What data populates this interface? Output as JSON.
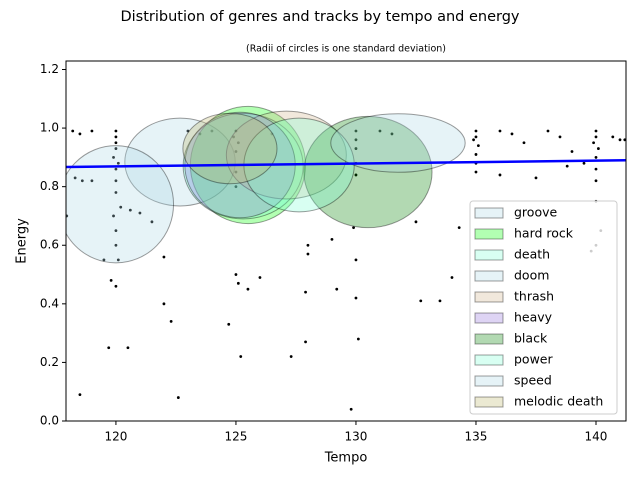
{
  "chart_data": {
    "type": "ellipse-scatter",
    "title": "Distribution of genres and tracks by tempo and energy",
    "subtitle": "(Radii of circles is one standard deviation)",
    "x_label": "Tempo",
    "y_label": "Energy",
    "xlim": [
      117.92,
      141.25
    ],
    "ylim": [
      0,
      1.229
    ],
    "xticks": [
      120,
      125,
      130,
      135,
      140
    ],
    "yticks": [
      {
        "value": 0,
        "label": "0.0"
      },
      0.2,
      0.4,
      0.6,
      0.8,
      {
        "value": 1,
        "label": "1.0"
      },
      1.2
    ],
    "alpha": 0.3,
    "legend": "lower right",
    "series": [
      {
        "name": "groove",
        "color": "#add8e6",
        "tempo": 122.67,
        "energy": 0.884,
        "sd_tempo": 2.3,
        "sd_energy": 0.15
      },
      {
        "name": "hard rock",
        "color": "#00ff00",
        "tempo": 125.5,
        "energy": 0.874,
        "sd_tempo": 2.4,
        "sd_energy": 0.2
      },
      {
        "name": "death",
        "color": "#7fffd4",
        "tempo": 125.3,
        "energy": 0.87,
        "sd_tempo": 2.5,
        "sd_energy": 0.18
      },
      {
        "name": "doom",
        "color": "#add8e6",
        "tempo": 120.0,
        "energy": 0.74,
        "sd_tempo": 2.4,
        "sd_energy": 0.2
      },
      {
        "name": "thrash",
        "color": "#d2b48c",
        "tempo": 127.1,
        "energy": 0.908,
        "sd_tempo": 2.5,
        "sd_energy": 0.15
      },
      {
        "name": "heavy",
        "color": "#9370db",
        "tempo": 125.17,
        "energy": 0.874,
        "sd_tempo": 2.3,
        "sd_energy": 0.18
      },
      {
        "name": "black",
        "color": "#008000",
        "tempo": 130.5,
        "energy": 0.85,
        "sd_tempo": 2.67,
        "sd_energy": 0.19
      },
      {
        "name": "power",
        "color": "#7fffd4",
        "tempo": 127.63,
        "energy": 0.874,
        "sd_tempo": 2.3,
        "sd_energy": 0.16
      },
      {
        "name": "speed",
        "color": "#add8e6",
        "tempo": 131.75,
        "energy": 0.949,
        "sd_tempo": 2.8,
        "sd_energy": 0.1
      },
      {
        "name": "melodic death",
        "color": "#bdb76b",
        "tempo": 124.75,
        "energy": 0.93,
        "sd_tempo": 1.96,
        "sd_energy": 0.12
      }
    ],
    "tracks": {
      "x": [
        120,
        120,
        120,
        120,
        119.9,
        120.1,
        120,
        120,
        120,
        119.9,
        120,
        120,
        120.1,
        119.8,
        120,
        119.7,
        120.5,
        120.2,
        120.6,
        121,
        118.2,
        118.5,
        119,
        118.3,
        118.6,
        119,
        119.5,
        118.5,
        117.95,
        121.5,
        122,
        122.3,
        122.6,
        122,
        125,
        124.9,
        125.1,
        125,
        125,
        125,
        125,
        125.1,
        125.2,
        124.7,
        125.5,
        126,
        123,
        123.5,
        124,
        126.5,
        127.3,
        130,
        130,
        130,
        130,
        130,
        129.9,
        130,
        130,
        130.1,
        129.8,
        128,
        128,
        127.9,
        127.9,
        129,
        129.2,
        131,
        131.5,
        135,
        135,
        134.9,
        135.1,
        135,
        135,
        135,
        134,
        133.5,
        132.7,
        136,
        136.5,
        137,
        138,
        138.5,
        139,
        137.5,
        136,
        139.5,
        138.8,
        140,
        140,
        139.9,
        140.1,
        140,
        140,
        140,
        140,
        140,
        139.8,
        140.2,
        141,
        140.7,
        141.2,
        134.3,
        132.5
      ],
      "y": [
        0.99,
        0.97,
        0.95,
        0.93,
        0.9,
        0.88,
        0.86,
        0.82,
        0.78,
        0.7,
        0.65,
        0.6,
        0.55,
        0.48,
        0.46,
        0.25,
        0.25,
        0.73,
        0.72,
        0.71,
        0.99,
        0.98,
        0.99,
        0.83,
        0.82,
        0.82,
        0.55,
        0.09,
        0.7,
        0.68,
        0.4,
        0.34,
        0.08,
        0.56,
        0.99,
        0.97,
        0.95,
        0.92,
        0.85,
        0.8,
        0.5,
        0.47,
        0.22,
        0.33,
        0.45,
        0.49,
        0.99,
        0.98,
        0.99,
        0.98,
        0.22,
        0.99,
        0.96,
        0.93,
        0.88,
        0.84,
        0.66,
        0.55,
        0.42,
        0.28,
        0.04,
        0.6,
        0.57,
        0.44,
        0.27,
        0.62,
        0.45,
        0.99,
        0.98,
        0.99,
        0.97,
        0.96,
        0.94,
        0.91,
        0.88,
        0.85,
        0.49,
        0.41,
        0.41,
        0.99,
        0.98,
        0.95,
        0.99,
        0.97,
        0.92,
        0.83,
        0.84,
        0.88,
        0.87,
        0.99,
        0.97,
        0.95,
        0.93,
        0.9,
        0.86,
        0.82,
        0.75,
        0.6,
        0.58,
        0.65,
        0.96,
        0.97,
        0.96,
        0.66,
        0.68
      ]
    },
    "trend": {
      "x": [
        117.92,
        141.25
      ],
      "y": [
        0.867,
        0.89
      ],
      "color": "#0000ff"
    }
  }
}
